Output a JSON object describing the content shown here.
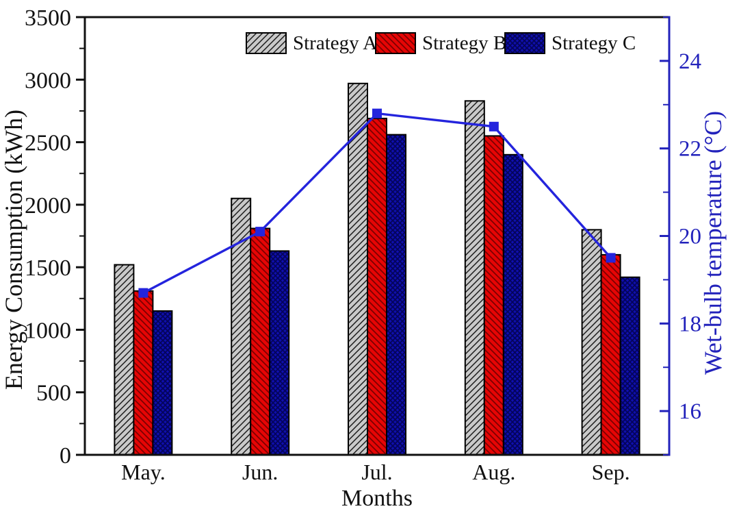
{
  "chart_data": {
    "type": "bar",
    "combo": "grouped-bars-with-line-overlay",
    "categories": [
      "May.",
      "Jun.",
      "Jul.",
      "Aug.",
      "Sep."
    ],
    "bar_series": [
      {
        "name": "Strategy A",
        "color": "#c9c9c9",
        "hatch": "/",
        "hatch_color": "#1a1a1a",
        "values": [
          1520,
          2050,
          2970,
          2830,
          1800
        ]
      },
      {
        "name": "Strategy B",
        "color": "#e60505",
        "hatch": "\\",
        "hatch_color": "#7d0000",
        "values": [
          1310,
          1810,
          2690,
          2550,
          1600
        ]
      },
      {
        "name": "Strategy C",
        "color": "#0f0fae",
        "hatch": "x",
        "hatch_color": "#04045c",
        "values": [
          1150,
          1630,
          2560,
          2400,
          1420
        ]
      }
    ],
    "line_series": {
      "name": "Wet-bulb temperature",
      "color": "#2424dd",
      "marker": "square",
      "values": [
        18.7,
        20.1,
        22.8,
        22.5,
        19.5
      ]
    },
    "left_axis": {
      "label": "Energy Consumption (kWh)",
      "min": 0,
      "max": 3500,
      "major_step": 500,
      "minor_step": 250,
      "tick_labels": [
        "0",
        "500",
        "1000",
        "1500",
        "2000",
        "2500",
        "3000",
        "3500"
      ],
      "color": "#111111"
    },
    "right_axis": {
      "label": "Wet-bulb temperature (°C)",
      "min": 15,
      "max": 25,
      "major_step": 2,
      "minor_step": 1,
      "tick_labels": [
        "16",
        "18",
        "20",
        "22",
        "24"
      ],
      "labeled_values": [
        16,
        18,
        20,
        22,
        24
      ],
      "color": "#2222bb"
    },
    "x_axis": {
      "label": "Months"
    },
    "legend": {
      "position": "top-center-inside",
      "entries": [
        "Strategy A",
        "Strategy B",
        "Strategy C"
      ]
    },
    "grid": false,
    "background": "#ffffff"
  }
}
